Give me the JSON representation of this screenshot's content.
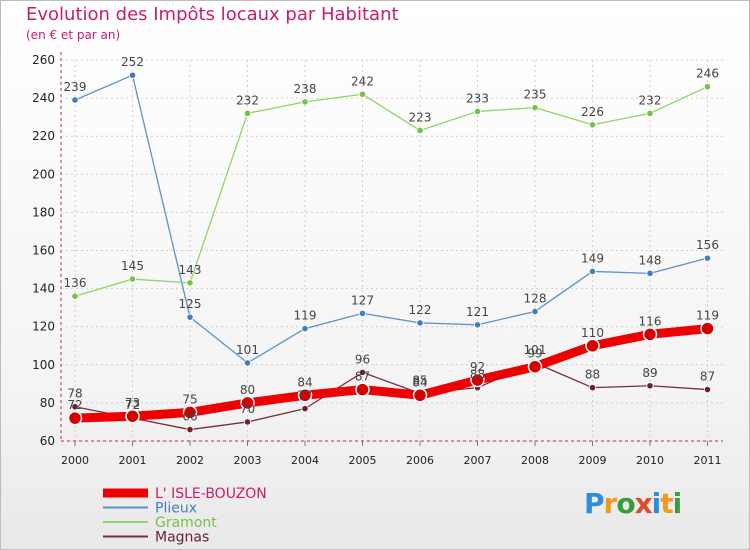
{
  "title": "Evolution des Impôts locaux par Habitant",
  "subtitle": "(en € et par an)",
  "logo_text": "Proxiti",
  "colors": {
    "title": "#c81d6b",
    "axis": "#c81d6b",
    "grid": "#d0d0d0"
  },
  "chart_data": {
    "type": "line",
    "x": [
      "2000",
      "2001",
      "2002",
      "2003",
      "2004",
      "2005",
      "2006",
      "2007",
      "2008",
      "2009",
      "2010",
      "2011"
    ],
    "ylim": [
      60,
      260
    ],
    "yticks": [
      60,
      80,
      100,
      120,
      140,
      160,
      180,
      200,
      220,
      240,
      260
    ],
    "grid": true,
    "legend_position": "bottom-left",
    "series": [
      {
        "name": "L' ISLE-BOUZON",
        "color": "#ee0000",
        "point_color": "#d40000",
        "label_color": "#444444",
        "width": 9,
        "values": [
          72,
          73,
          75,
          80,
          84,
          87,
          84,
          92,
          99,
          110,
          116,
          119
        ],
        "labels": [
          "72",
          "73",
          "75",
          "80",
          "84",
          "87",
          "84",
          "92",
          "99",
          "110",
          "116",
          "119"
        ]
      },
      {
        "name": "Plieux",
        "color": "#5b93c7",
        "point_color": "#3f7fc0",
        "label_color": "#444444",
        "width": 1.3,
        "values": [
          239,
          252,
          125,
          101,
          119,
          127,
          122,
          121,
          128,
          149,
          148,
          156
        ],
        "labels": [
          "239",
          "252",
          "125",
          "101",
          "119",
          "127",
          "122",
          "121",
          "128",
          "149",
          "148",
          "156"
        ]
      },
      {
        "name": "Gramont",
        "color": "#8fd36a",
        "point_color": "#74c24a",
        "label_color": "#444444",
        "width": 1.3,
        "values": [
          136,
          145,
          143,
          232,
          238,
          242,
          223,
          233,
          235,
          226,
          232,
          246
        ],
        "labels": [
          "136",
          "145",
          "143",
          "232",
          "238",
          "242",
          "223",
          "233",
          "235",
          "226",
          "232",
          "246"
        ]
      },
      {
        "name": "Magnas",
        "color": "#7a2e3c",
        "point_color": "#6a2030",
        "label_color": "#444444",
        "width": 1.3,
        "values": [
          78,
          72,
          66,
          70,
          77,
          96,
          85,
          88,
          101,
          88,
          89,
          87
        ],
        "labels": [
          "78",
          "72",
          "66",
          "70",
          "77",
          "96",
          "85",
          "88",
          "101",
          "88",
          "89",
          "87"
        ]
      }
    ]
  }
}
